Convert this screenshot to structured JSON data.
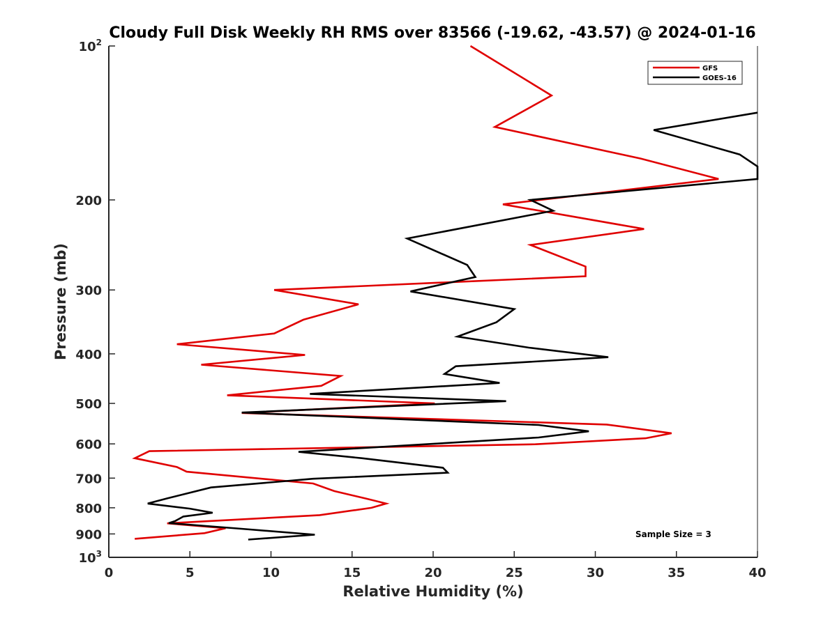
{
  "chart_data": {
    "type": "line",
    "title": "Cloudy Full Disk Weekly RH RMS over 83566 (-19.62, -43.57) @ 2024-01-16",
    "xlabel": "Relative Humidity (%)",
    "ylabel": "Pressure (mb)",
    "xlim": [
      0,
      40
    ],
    "ylim": [
      100,
      1000
    ],
    "y_scale": "log",
    "y_reversed": true,
    "grid": false,
    "legend_position": "top-right",
    "annotation": "Sample Size = 3",
    "x_ticks": [
      "0",
      "5",
      "10",
      "15",
      "20",
      "25",
      "30",
      "35",
      "40"
    ],
    "y_ticks": [
      {
        "value": 100,
        "label": "10",
        "exp": "2"
      },
      {
        "value": 200,
        "label": "200",
        "exp": ""
      },
      {
        "value": 300,
        "label": "300",
        "exp": ""
      },
      {
        "value": 400,
        "label": "400",
        "exp": ""
      },
      {
        "value": 500,
        "label": "500",
        "exp": ""
      },
      {
        "value": 600,
        "label": "600",
        "exp": ""
      },
      {
        "value": 700,
        "label": "700",
        "exp": ""
      },
      {
        "value": 800,
        "label": "800",
        "exp": ""
      },
      {
        "value": 900,
        "label": "900",
        "exp": ""
      },
      {
        "value": 1000,
        "label": "10",
        "exp": "3"
      }
    ],
    "series": [
      {
        "name": "GFS",
        "color": "#e00000",
        "points": [
          [
            22.3,
            100
          ],
          [
            27.3,
            125
          ],
          [
            23.8,
            144
          ],
          [
            32.8,
            166
          ],
          [
            37.6,
            182
          ],
          [
            24.3,
            204
          ],
          [
            33.0,
            228
          ],
          [
            26.0,
            245
          ],
          [
            29.4,
            270
          ],
          [
            29.4,
            282
          ],
          [
            10.2,
            300
          ],
          [
            15.4,
            320
          ],
          [
            12.0,
            343
          ],
          [
            10.2,
            365
          ],
          [
            4.2,
            383
          ],
          [
            12.1,
            402
          ],
          [
            5.7,
            420
          ],
          [
            14.3,
            442
          ],
          [
            13.1,
            462
          ],
          [
            7.3,
            482
          ],
          [
            20.1,
            500
          ],
          [
            8.2,
            522
          ],
          [
            30.7,
            550
          ],
          [
            34.7,
            572
          ],
          [
            33.1,
            585
          ],
          [
            26.3,
            601
          ],
          [
            2.5,
            620
          ],
          [
            1.6,
            640
          ],
          [
            4.2,
            666
          ],
          [
            4.8,
            680
          ],
          [
            12.6,
            717
          ],
          [
            13.9,
            742
          ],
          [
            15.9,
            768
          ],
          [
            17.1,
            785
          ],
          [
            16.2,
            800
          ],
          [
            13.0,
            827
          ],
          [
            3.6,
            858
          ],
          [
            7.2,
            877
          ],
          [
            5.9,
            897
          ],
          [
            1.6,
            920
          ]
        ]
      },
      {
        "name": "GOES-16",
        "color": "#000000",
        "points": [
          [
            40.0,
            135
          ],
          [
            33.6,
            146
          ],
          [
            38.9,
            163
          ],
          [
            40.0,
            172
          ],
          [
            40.0,
            182
          ],
          [
            26.0,
            200
          ],
          [
            27.4,
            210
          ],
          [
            18.4,
            238
          ],
          [
            22.1,
            268
          ],
          [
            22.6,
            283
          ],
          [
            18.6,
            302
          ],
          [
            25.0,
            327
          ],
          [
            23.9,
            347
          ],
          [
            21.5,
            370
          ],
          [
            25.9,
            389
          ],
          [
            30.8,
            406
          ],
          [
            21.4,
            423
          ],
          [
            20.7,
            438
          ],
          [
            24.1,
            456
          ],
          [
            12.4,
            479
          ],
          [
            24.5,
            495
          ],
          [
            8.2,
            521
          ],
          [
            26.5,
            551
          ],
          [
            29.6,
            567
          ],
          [
            26.5,
            583
          ],
          [
            11.7,
            622
          ],
          [
            15.6,
            640
          ],
          [
            20.6,
            668
          ],
          [
            20.9,
            683
          ],
          [
            12.6,
            702
          ],
          [
            6.3,
            730
          ],
          [
            3.6,
            767
          ],
          [
            2.4,
            785
          ],
          [
            5.0,
            803
          ],
          [
            6.4,
            818
          ],
          [
            4.6,
            832
          ],
          [
            4.1,
            849
          ],
          [
            3.7,
            857
          ],
          [
            7.9,
            878
          ],
          [
            12.7,
            903
          ],
          [
            8.6,
            923
          ]
        ]
      }
    ]
  }
}
